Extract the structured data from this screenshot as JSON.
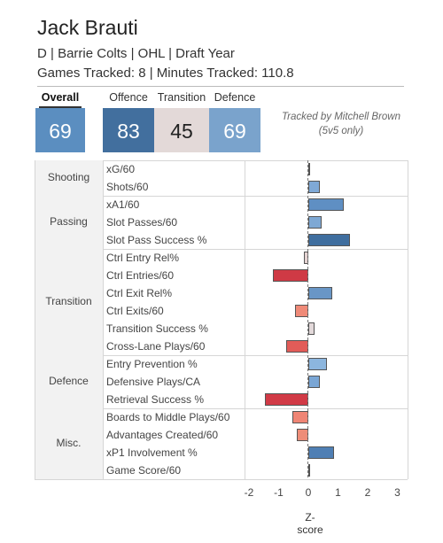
{
  "header": {
    "player_name": "Jack Brauti",
    "info_line": "D | Barrie Colts | OHL | Draft Year",
    "tracking_line": "Games Tracked: 8 | Minutes Tracked: 110.8"
  },
  "scores": {
    "overall_label": "Overall",
    "overall_value": "69",
    "offence_label": "Offence",
    "offence_value": "83",
    "transition_label": "Transition",
    "transition_value": "45",
    "defence_label": "Defence",
    "defence_value": "69"
  },
  "credit": {
    "line1": "Tracked by Mitchell Brown",
    "line2": "(5v5 only)"
  },
  "colors": {
    "overall_box": "#5b8ec0",
    "offence_box": "#426f9e",
    "transition_box": "#e3d9d8",
    "defence_box": "#7aa3cc"
  },
  "chart_data": {
    "type": "bar",
    "orientation": "horizontal",
    "xlabel": "Z-score",
    "xlim": [
      -2,
      3
    ],
    "xticks": [
      "-2",
      "-1",
      "0",
      "1",
      "2",
      "3"
    ],
    "groups": [
      {
        "name": "Shooting",
        "metrics": [
          {
            "label": "xG/60",
            "z": 0.05,
            "color": "#c8d4e2"
          },
          {
            "label": "Shots/60",
            "z": 0.4,
            "color": "#7fa9d6"
          }
        ]
      },
      {
        "name": "Passing",
        "metrics": [
          {
            "label": "xA1/60",
            "z": 1.2,
            "color": "#5f8fc3"
          },
          {
            "label": "Slot Passes/60",
            "z": 0.45,
            "color": "#7ea8d4"
          },
          {
            "label": "Slot Pass Success %",
            "z": 1.4,
            "color": "#3f6e9f"
          }
        ]
      },
      {
        "name": "Transition",
        "metrics": [
          {
            "label": "Ctrl Entry Rel%",
            "z": -0.15,
            "color": "#e5d3d2"
          },
          {
            "label": "Ctrl Entries/60",
            "z": -1.2,
            "color": "#cf3a45"
          },
          {
            "label": "Ctrl Exit Rel%",
            "z": 0.8,
            "color": "#6996c6"
          },
          {
            "label": "Ctrl Exits/60",
            "z": -0.45,
            "color": "#ef8a78"
          },
          {
            "label": "Transition Success %",
            "z": 0.2,
            "color": "#e3d9da"
          },
          {
            "label": "Cross-Lane Plays/60",
            "z": -0.75,
            "color": "#e25c58"
          }
        ]
      },
      {
        "name": "Defence",
        "metrics": [
          {
            "label": "Entry Prevention %",
            "z": 0.62,
            "color": "#8cb6de"
          },
          {
            "label": "Defensive Plays/CA",
            "z": 0.4,
            "color": "#7aa6d5"
          },
          {
            "label": "Retrieval Success %",
            "z": -1.45,
            "color": "#d13a46"
          }
        ]
      },
      {
        "name": "Misc.",
        "metrics": [
          {
            "label": "Boards to Middle Plays/60",
            "z": -0.55,
            "color": "#ef8575"
          },
          {
            "label": "Advantages Created/60",
            "z": -0.38,
            "color": "#ee8d78"
          },
          {
            "label": "xP1 Involvement %",
            "z": 0.88,
            "color": "#4f7fb4"
          },
          {
            "label": "Game Score/60",
            "z": 0.03,
            "color": "#dde4ec"
          }
        ]
      }
    ]
  }
}
